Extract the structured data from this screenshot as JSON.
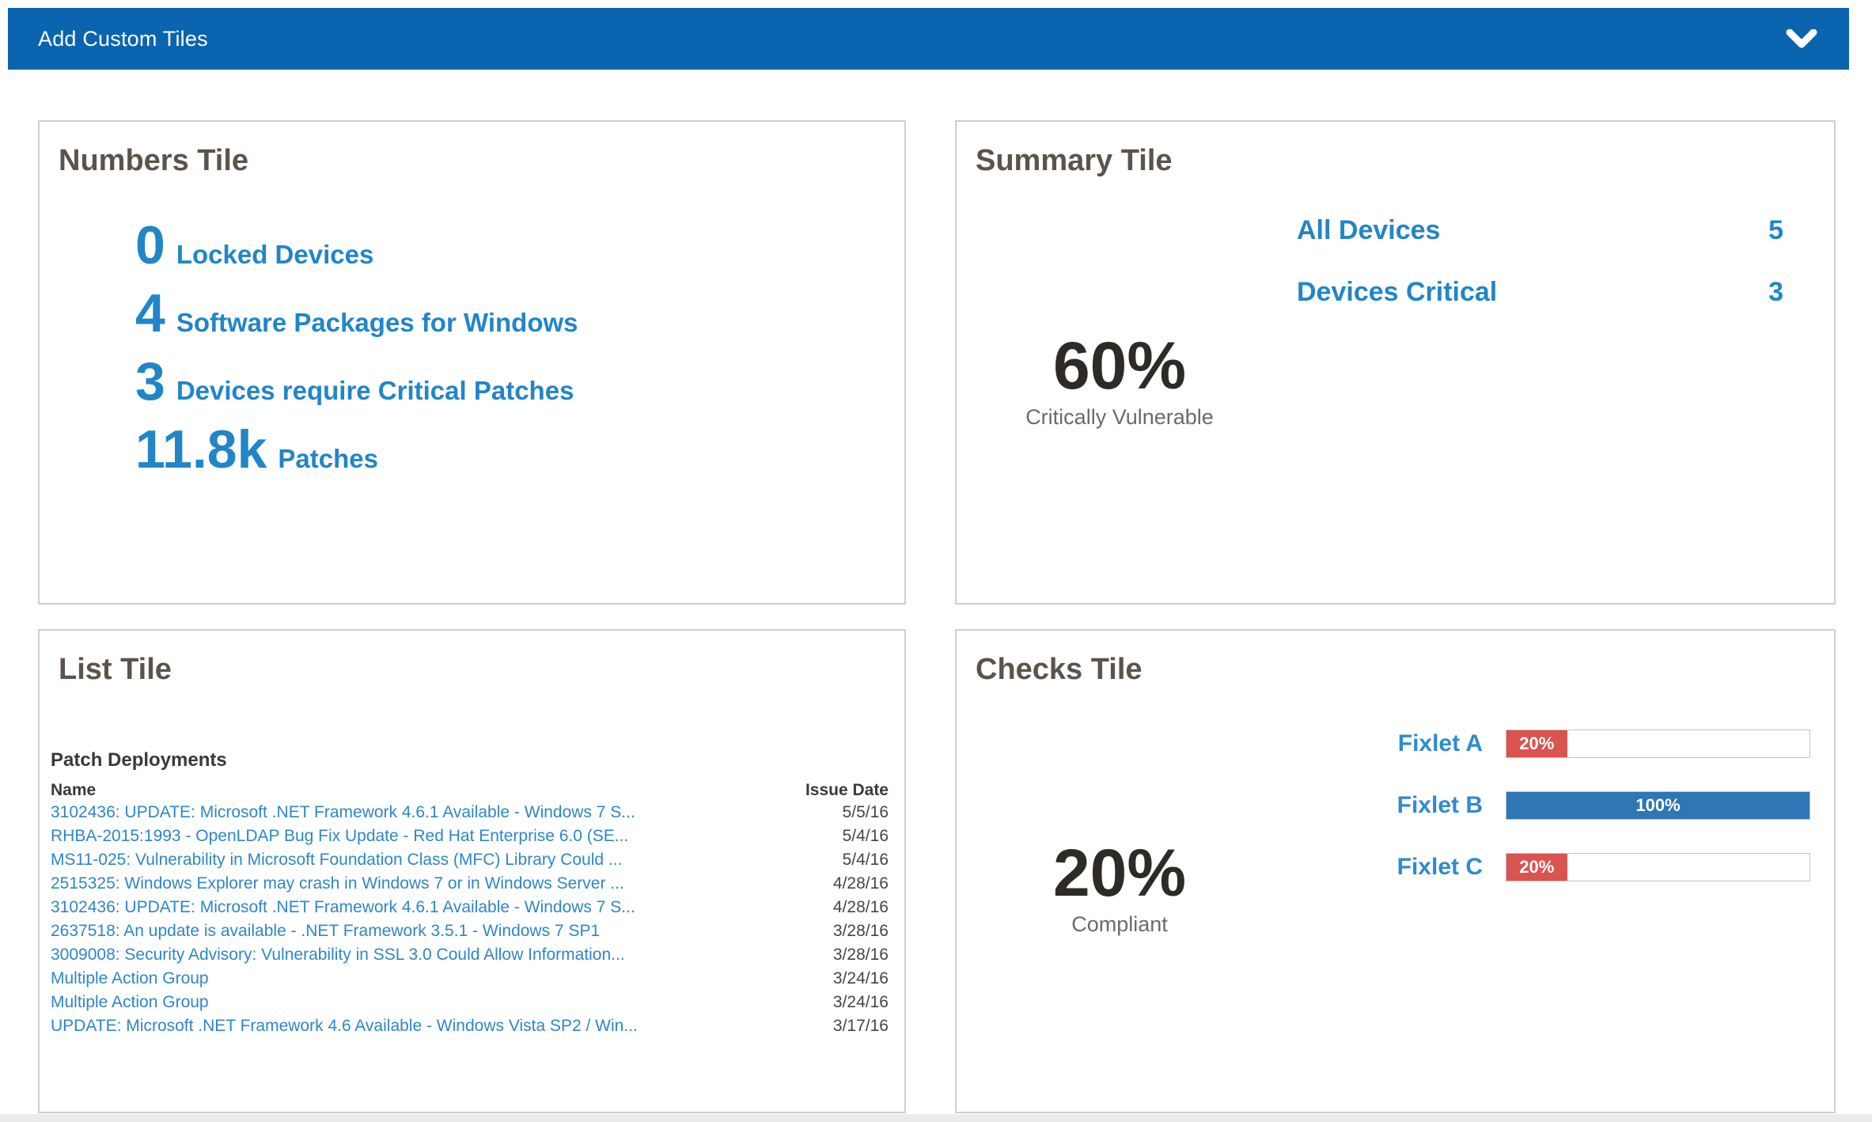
{
  "header": {
    "title": "Add Custom Tiles",
    "background_color": "#0b64b0",
    "chevron_icon": "chevron-down"
  },
  "numbers_tile": {
    "title": "Numbers Tile",
    "accent_color": "#2285c8",
    "items": [
      {
        "value": "0",
        "label": "Locked Devices"
      },
      {
        "value": "4",
        "label": "Software Packages for Windows"
      },
      {
        "value": "3",
        "label": "Devices require Critical Patches"
      },
      {
        "value": "11.8k",
        "label": "Patches"
      }
    ]
  },
  "summary_tile": {
    "title": "Summary Tile",
    "stats": [
      {
        "label": "All Devices",
        "value": "5"
      },
      {
        "label": "Devices Critical",
        "value": "3"
      }
    ],
    "big_percent": "60%",
    "big_caption": "Critically Vulnerable"
  },
  "list_tile": {
    "title": "List Tile",
    "subtitle": "Patch Deployments",
    "columns": {
      "name": "Name",
      "date": "Issue Date"
    },
    "rows": [
      {
        "name": "3102436: UPDATE: Microsoft .NET Framework 4.6.1 Available - Windows 7 S...",
        "date": "5/5/16"
      },
      {
        "name": "RHBA-2015:1993 - OpenLDAP Bug Fix Update - Red Hat Enterprise 6.0 (SE...",
        "date": "5/4/16"
      },
      {
        "name": "MS11-025: Vulnerability in Microsoft Foundation Class (MFC) Library Could ...",
        "date": "5/4/16"
      },
      {
        "name": "2515325: Windows Explorer may crash in Windows 7 or in Windows Server ...",
        "date": "4/28/16"
      },
      {
        "name": "3102436: UPDATE: Microsoft .NET Framework 4.6.1 Available - Windows 7 S...",
        "date": "4/28/16"
      },
      {
        "name": "2637518: An update is available - .NET Framework 3.5.1 - Windows 7 SP1",
        "date": "3/28/16"
      },
      {
        "name": "3009008: Security Advisory: Vulnerability in SSL 3.0 Could Allow Information...",
        "date": "3/28/16"
      },
      {
        "name": "Multiple Action Group",
        "date": "3/24/16"
      },
      {
        "name": "Multiple Action Group",
        "date": "3/24/16"
      },
      {
        "name": "UPDATE: Microsoft .NET Framework 4.6 Available - Windows Vista SP2 / Win...",
        "date": "3/17/16"
      }
    ]
  },
  "checks_tile": {
    "title": "Checks Tile",
    "big_percent": "20%",
    "big_caption": "Compliant",
    "bar_red": "#d9534f",
    "bar_blue": "#2e76b4",
    "fixlets": [
      {
        "label": "Fixlet A",
        "percent": 20,
        "percent_label": "20%",
        "color": "#d9534f"
      },
      {
        "label": "Fixlet B",
        "percent": 100,
        "percent_label": "100%",
        "color": "#2e76b4"
      },
      {
        "label": "Fixlet C",
        "percent": 20,
        "percent_label": "20%",
        "color": "#d9534f"
      }
    ]
  }
}
